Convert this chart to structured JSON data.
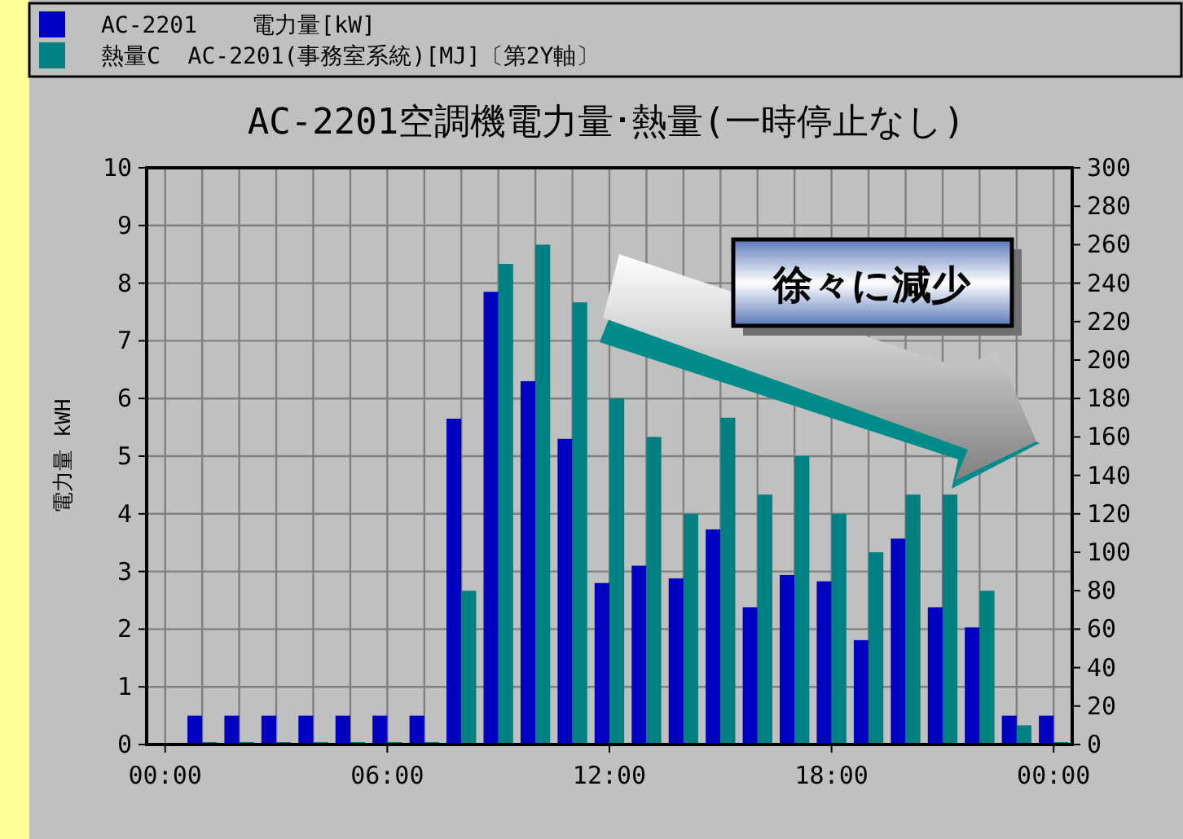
{
  "chart_data": {
    "type": "bar",
    "title": "AC-2201空調機電力量･熱量(一時停止なし)",
    "ylabel": "電力量 kWH",
    "x": [
      1,
      2,
      3,
      4,
      5,
      6,
      7,
      8,
      9,
      10,
      11,
      12,
      13,
      14,
      15,
      16,
      17,
      18,
      19,
      20,
      21,
      22,
      23,
      24
    ],
    "series": [
      {
        "name": "AC-2201    電力量[kW]",
        "color": "#0000c0",
        "values": [
          0.5,
          0.5,
          0.5,
          0.5,
          0.5,
          0.5,
          0.5,
          5.65,
          7.85,
          6.3,
          5.3,
          2.8,
          3.1,
          2.88,
          3.73,
          2.38,
          2.94,
          2.83,
          1.81,
          3.57,
          2.38,
          2.03,
          0.5,
          0.5
        ]
      },
      {
        "name": "熱量C  AC-2201(事務室系統)[MJ]〔第2Y軸〕",
        "color": "#008080",
        "axis": "y2",
        "values": [
          0,
          0,
          0,
          0,
          0,
          0,
          0,
          80,
          250,
          260,
          230,
          180,
          160,
          120,
          170,
          130,
          150,
          120,
          100,
          130,
          130,
          80,
          10,
          0
        ]
      }
    ],
    "xlim": [
      -0.5,
      24.5
    ],
    "xticks": [
      {
        "value": 0,
        "label": "00:00"
      },
      {
        "value": 1,
        "label": null
      },
      {
        "value": 2,
        "label": null
      },
      {
        "value": 3,
        "label": null
      },
      {
        "value": 4,
        "label": null
      },
      {
        "value": 5,
        "label": null
      },
      {
        "value": 6,
        "label": "06:00"
      },
      {
        "value": 7,
        "label": null
      },
      {
        "value": 8,
        "label": null
      },
      {
        "value": 9,
        "label": null
      },
      {
        "value": 10,
        "label": null
      },
      {
        "value": 11,
        "label": null
      },
      {
        "value": 12,
        "label": "12:00"
      },
      {
        "value": 13,
        "label": null
      },
      {
        "value": 14,
        "label": null
      },
      {
        "value": 15,
        "label": null
      },
      {
        "value": 16,
        "label": null
      },
      {
        "value": 17,
        "label": null
      },
      {
        "value": 18,
        "label": "18:00"
      },
      {
        "value": 19,
        "label": null
      },
      {
        "value": 20,
        "label": null
      },
      {
        "value": 21,
        "label": null
      },
      {
        "value": 22,
        "label": null
      },
      {
        "value": 23,
        "label": null
      },
      {
        "value": 24,
        "label": "00:00"
      }
    ],
    "ylim": [
      0,
      10
    ],
    "yticks": [
      0,
      1,
      2,
      3,
      4,
      5,
      6,
      7,
      8,
      9,
      10
    ],
    "y2lim": [
      0,
      300
    ],
    "y2ticks": [
      0,
      20,
      40,
      60,
      80,
      100,
      120,
      140,
      160,
      180,
      200,
      220,
      240,
      260,
      280,
      300
    ],
    "grid": true,
    "legend": "top",
    "annotations": [
      "徐々に減少"
    ]
  }
}
